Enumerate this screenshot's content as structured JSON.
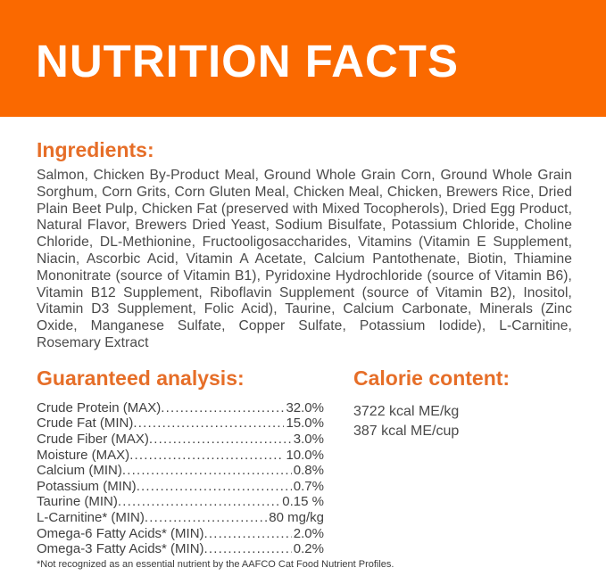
{
  "colors": {
    "banner-orange": "#FA6900",
    "heading-orange": "#E66E28",
    "body-text": "#4a4a4a",
    "row-text": "#414141"
  },
  "banner": {
    "title": "NUTRITION FACTS"
  },
  "ingredients": {
    "heading": "Ingredients:",
    "text": "Salmon, Chicken By-Product Meal, Ground Whole Grain Corn, Ground Whole Grain Sorghum, Corn Grits, Corn Gluten Meal, Chicken Meal, Chicken, Brewers Rice, Dried Plain Beet Pulp, Chicken Fat (preserved with Mixed Tocopherols), Dried Egg Product, Natural Flavor, Brewers Dried Yeast, Sodium Bisulfate, Potassium Chloride, Choline Chloride, DL-Methionine, Fructooligosaccharides, Vitamins (Vitamin E Supplement, Niacin, Ascorbic Acid, Vitamin A Acetate, Calcium Pantothenate, Biotin, Thiamine Mononitrate (source of Vitamin B1), Pyridoxine Hydrochloride (source of Vitamin B6), Vitamin B12 Supplement, Riboflavin Supplement (source of Vitamin B2), Inositol, Vitamin D3 Supplement, Folic Acid), Taurine, Calcium Carbonate, Minerals (Zinc Oxide, Manganese Sulfate, Copper Sulfate, Potassium Iodide), L-Carnitine, Rosemary Extract"
  },
  "guaranteed_analysis": {
    "heading": "Guaranteed analysis:",
    "rows": [
      {
        "label": "Crude Protein (MAX)",
        "value": "32.0%"
      },
      {
        "label": "Crude Fat (MIN)",
        "value": "15.0%"
      },
      {
        "label": "Crude Fiber (MAX)",
        "value": "3.0%"
      },
      {
        "label": "Moisture (MAX)",
        "value": "10.0%"
      },
      {
        "label": "Calcium (MIN)",
        "value": "0.8%"
      },
      {
        "label": "Potassium (MIN)",
        "value": "0.7%"
      },
      {
        "label": "Taurine (MIN)",
        "value": "0.15 %"
      },
      {
        "label": "L-Carnitine* (MIN)",
        "value": "80 mg/kg"
      },
      {
        "label": "Omega-6 Fatty Acids* (MIN)",
        "value": "2.0%"
      },
      {
        "label": "Omega-3 Fatty Acids* (MIN)",
        "value": "0.2%"
      }
    ]
  },
  "calorie_content": {
    "heading": "Calorie content:",
    "lines": [
      "3722 kcal ME/kg",
      "387 kcal ME/cup"
    ]
  },
  "footnote": "*Not recognized as an essential nutrient by the AAFCO Cat Food Nutrient Profiles."
}
